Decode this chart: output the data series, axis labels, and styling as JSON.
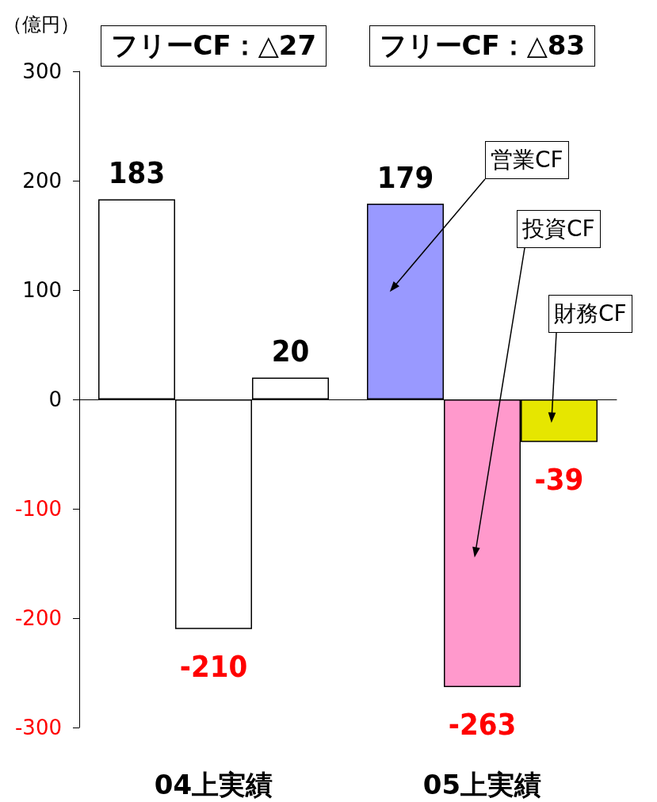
{
  "chart_data": {
    "type": "bar",
    "ylabel": "（億円）",
    "categories": [
      "04上実績",
      "05上実績"
    ],
    "series": [
      {
        "name": "営業CF",
        "colors": [
          "#ffffff",
          "#9999ff"
        ],
        "values": [
          183,
          179
        ]
      },
      {
        "name": "投資CF",
        "colors": [
          "#ffffff",
          "#ff99cc"
        ],
        "values": [
          -210,
          -263
        ]
      },
      {
        "name": "財務CF",
        "colors": [
          "#ffffff",
          "#e6e600"
        ],
        "values": [
          20,
          -39
        ]
      }
    ],
    "annotations": [
      "フリーCF：△27",
      "フリーCF：△83"
    ],
    "ylim": [
      -300,
      300
    ],
    "yticks": [
      -300,
      -200,
      -100,
      0,
      100,
      200,
      300
    ],
    "data_labels": true,
    "legend": false
  }
}
